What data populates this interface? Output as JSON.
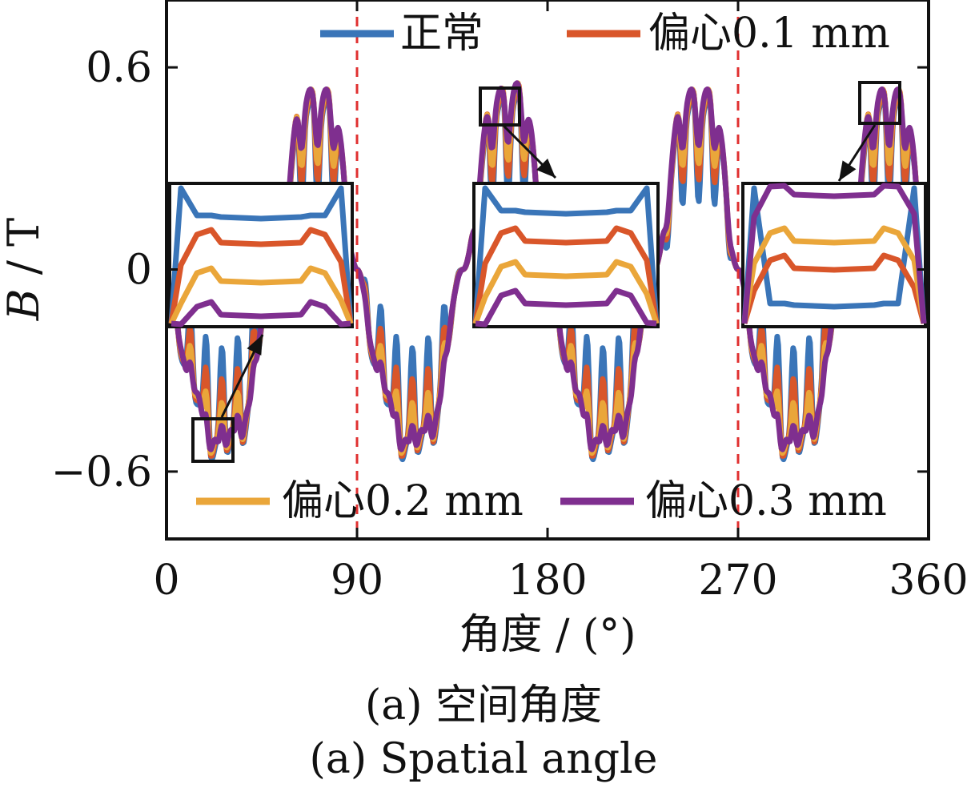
{
  "chart_data": {
    "type": "line",
    "xlabel": "角度 / (°)",
    "ylabel_italic": "B",
    "ylabel_unit": " / T",
    "xlim": [
      0,
      360
    ],
    "ylim": [
      -0.8,
      0.8
    ],
    "x_ticks": [
      0,
      90,
      180,
      270,
      360
    ],
    "x_tick_labels": [
      "0",
      "90",
      "180",
      "270",
      "360"
    ],
    "y_ticks": [
      -0.6,
      0,
      0.6
    ],
    "y_tick_labels": [
      "−0.6",
      "0",
      "0.6"
    ],
    "reference_lines_x": [
      90,
      270
    ],
    "grid": false,
    "legend": [
      {
        "name": "正常",
        "position": "top-left"
      },
      {
        "name": "偏心0.1 mm",
        "position": "top-right"
      },
      {
        "name": "偏心0.2 mm",
        "position": "bottom-left"
      },
      {
        "name": "偏心0.3 mm",
        "position": "bottom-right"
      }
    ],
    "series": [
      {
        "name": "正常",
        "color": "#3a75b8",
        "slot_depth": 0.3,
        "peak_scale": 1.0
      },
      {
        "name": "偏心0.1 mm",
        "color": "#d9562a",
        "slot_depth": 0.22,
        "peak_scale": 1.0
      },
      {
        "name": "偏心0.2 mm",
        "color": "#eaa63a",
        "slot_depth": 0.16,
        "peak_scale": 1.0
      },
      {
        "name": "偏心0.3 mm",
        "color": "#7f2f8f",
        "slot_depth": 0.1,
        "peak_scale": 1.0
      }
    ],
    "base_waveform": {
      "x": [
        0,
        10,
        22,
        35,
        50,
        65,
        78,
        90,
        100,
        112,
        125,
        140,
        155,
        168,
        180,
        190,
        202,
        215,
        230,
        245,
        258,
        270,
        280,
        292,
        305,
        320,
        335,
        348,
        360
      ],
      "y": [
        0,
        -0.32,
        -0.54,
        -0.5,
        -0.05,
        0.5,
        0.5,
        0,
        -0.32,
        -0.54,
        -0.5,
        0.0,
        0.5,
        0.52,
        0.05,
        -0.32,
        -0.54,
        -0.5,
        0.0,
        0.5,
        0.5,
        0,
        -0.32,
        -0.54,
        -0.5,
        0.0,
        0.5,
        0.5,
        0
      ]
    },
    "insets": [
      {
        "label": "inset-left",
        "zoom_x_range": [
          14,
          32
        ],
        "zoom_y_range": [
          -0.58,
          -0.46
        ]
      },
      {
        "label": "inset-middle",
        "zoom_x_range": [
          148,
          166
        ],
        "zoom_y_range": [
          0.45,
          0.55
        ]
      },
      {
        "label": "inset-right",
        "zoom_x_range": [
          330,
          348
        ],
        "zoom_y_range": [
          0.45,
          0.57
        ]
      }
    ]
  },
  "caption_cn": "(a)  空间角度",
  "caption_en": "(a)  Spatial angle"
}
